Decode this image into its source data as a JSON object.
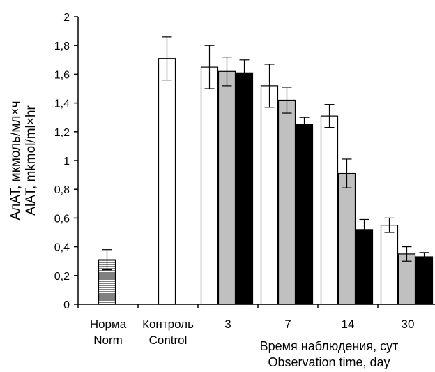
{
  "chart_data": {
    "type": "bar",
    "ylabel_lines": [
      "АлАТ, мкмоль/мл×ч",
      "AlAT, mkmol/ml×hr"
    ],
    "xlabel_lines": [
      "Время наблюдения, сут",
      "Observation time, day"
    ],
    "ylim": [
      0,
      2
    ],
    "yticks": [
      {
        "value": 0,
        "label": "0"
      },
      {
        "value": 0.2,
        "label": "0,2"
      },
      {
        "value": 0.4,
        "label": "0,4"
      },
      {
        "value": 0.6,
        "label": "0,6"
      },
      {
        "value": 0.8,
        "label": "0,8"
      },
      {
        "value": 1,
        "label": "1"
      },
      {
        "value": 1.2,
        "label": "1,2"
      },
      {
        "value": 1.4,
        "label": "1,4"
      },
      {
        "value": 1.6,
        "label": "1,6"
      },
      {
        "value": 1.8,
        "label": "1,8"
      },
      {
        "value": 2,
        "label": "2"
      }
    ],
    "categories": [
      {
        "labels": [
          "Норма",
          "Norm"
        ]
      },
      {
        "labels": [
          "Контроль",
          "Control"
        ]
      },
      {
        "labels": [
          "3"
        ]
      },
      {
        "labels": [
          "7"
        ]
      },
      {
        "labels": [
          "14"
        ]
      },
      {
        "labels": [
          "30"
        ]
      }
    ],
    "bars": [
      {
        "group": 0,
        "slot": 1,
        "style": "hatched",
        "value": 0.31,
        "error": 0.07
      },
      {
        "group": 1,
        "slot": 1,
        "style": "white",
        "value": 1.71,
        "error": 0.15
      },
      {
        "group": 2,
        "slot": 0,
        "style": "white",
        "value": 1.65,
        "error": 0.15
      },
      {
        "group": 2,
        "slot": 1,
        "style": "gray",
        "value": 1.62,
        "error": 0.1
      },
      {
        "group": 2,
        "slot": 2,
        "style": "black",
        "value": 1.61,
        "error": 0.09
      },
      {
        "group": 3,
        "slot": 0,
        "style": "white",
        "value": 1.52,
        "error": 0.15
      },
      {
        "group": 3,
        "slot": 1,
        "style": "gray",
        "value": 1.42,
        "error": 0.09
      },
      {
        "group": 3,
        "slot": 2,
        "style": "black",
        "value": 1.25,
        "error": 0.05
      },
      {
        "group": 4,
        "slot": 0,
        "style": "white",
        "value": 1.31,
        "error": 0.08
      },
      {
        "group": 4,
        "slot": 1,
        "style": "gray",
        "value": 0.91,
        "error": 0.1
      },
      {
        "group": 4,
        "slot": 2,
        "style": "black",
        "value": 0.52,
        "error": 0.07
      },
      {
        "group": 5,
        "slot": 0,
        "style": "white",
        "value": 0.55,
        "error": 0.05
      },
      {
        "group": 5,
        "slot": 1,
        "style": "gray",
        "value": 0.35,
        "error": 0.05
      },
      {
        "group": 5,
        "slot": 2,
        "style": "black",
        "value": 0.33,
        "error": 0.03
      }
    ],
    "colors": {
      "white": "#ffffff",
      "gray": "#c0c0c0",
      "black": "#000000",
      "hatched": "#ffffff",
      "axis": "#000000"
    },
    "grid": false,
    "legend": "none"
  }
}
